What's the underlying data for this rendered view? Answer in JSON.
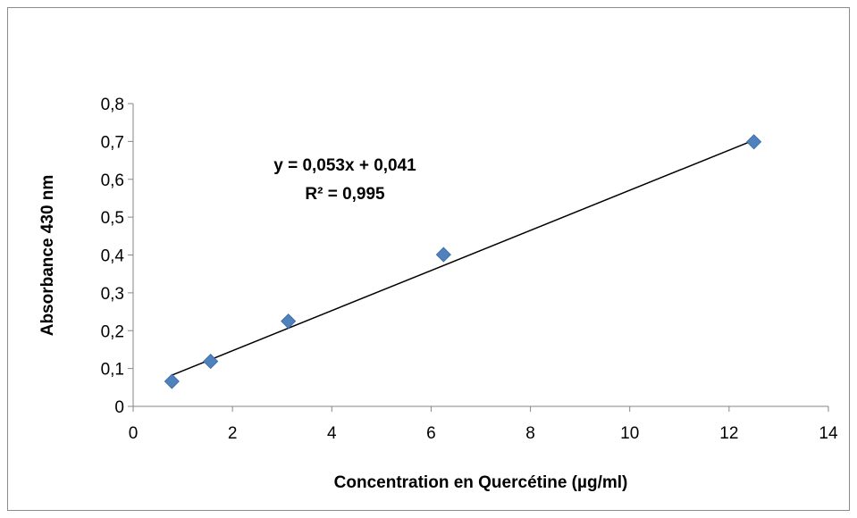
{
  "chart_data": {
    "type": "scatter",
    "title": "",
    "xlabel": "Concentration en Quercétine (µg/ml)",
    "ylabel": "Absorbance 430 nm",
    "xlim": [
      0,
      14
    ],
    "ylim": [
      0,
      0.8
    ],
    "x_ticks": [
      0,
      2,
      4,
      6,
      8,
      10,
      12,
      14
    ],
    "y_ticks": [
      0,
      0.1,
      0.2,
      0.3,
      0.4,
      0.5,
      0.6,
      0.7,
      0.8
    ],
    "x_tick_labels": [
      "0",
      "2",
      "4",
      "6",
      "8",
      "10",
      "12",
      "14"
    ],
    "y_tick_labels": [
      "0",
      "0,1",
      "0,2",
      "0,3",
      "0,4",
      "0,5",
      "0,6",
      "0,7",
      "0,8"
    ],
    "grid": false,
    "legend": "none",
    "series": [
      {
        "marker": "diamond",
        "color": "#4f81bd",
        "x": [
          0.78,
          1.56,
          3.125,
          6.25,
          12.5
        ],
        "y": [
          0.066,
          0.119,
          0.225,
          0.401,
          0.699
        ]
      }
    ],
    "trendline": {
      "type": "linear",
      "slope": 0.053,
      "intercept": 0.041,
      "x_range": [
        0.78,
        12.5
      ],
      "color": "#000000"
    },
    "annotations": {
      "equation": "y = 0,053x + 0,041",
      "r_squared": "R² = 0,995"
    }
  }
}
